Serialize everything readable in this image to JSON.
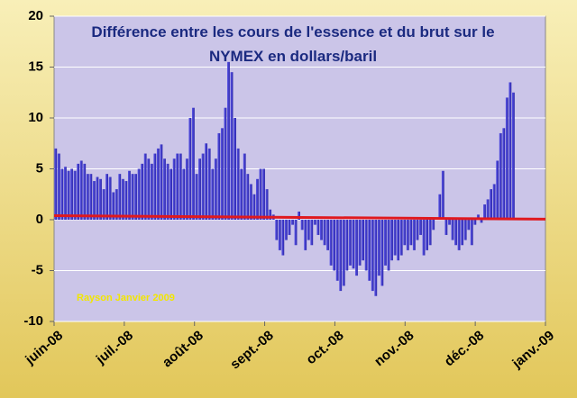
{
  "chart_data": {
    "type": "bar",
    "title": "Différence entre les cours de l'essence et du brut sur le NYMEX en dollars/baril",
    "annotation": "Rayson Janvier 2009",
    "categories": [
      null,
      null,
      null,
      null,
      null,
      null,
      null,
      null,
      null,
      null,
      null,
      null,
      null,
      null,
      null,
      null,
      null,
      null,
      null,
      null,
      null,
      null,
      null,
      null,
      null,
      null,
      null,
      null,
      null,
      null,
      null,
      null,
      null,
      null,
      null,
      null,
      null,
      null,
      null,
      null,
      null,
      null,
      null,
      null,
      null,
      null,
      null,
      null,
      null,
      null,
      null,
      null,
      null,
      null,
      null,
      null,
      null,
      null,
      null,
      null,
      null,
      null,
      null,
      null,
      null,
      null,
      null,
      null,
      null,
      null,
      null,
      null,
      null,
      null,
      null,
      null,
      null,
      null,
      null,
      null,
      null,
      null,
      null,
      null,
      null,
      null,
      null,
      null,
      null,
      null,
      null,
      null,
      null,
      null,
      null,
      null,
      null,
      null,
      null,
      null,
      null,
      null,
      null,
      null,
      null,
      null,
      null,
      null,
      null,
      null,
      null,
      null,
      null,
      null,
      null,
      null,
      null,
      null,
      null,
      null,
      null,
      null,
      null,
      null,
      null,
      null,
      null,
      null,
      null,
      null,
      null,
      null,
      null,
      null,
      null,
      null,
      null,
      null,
      null,
      null,
      null,
      null,
      null,
      null
    ],
    "values": [
      7.0,
      6.5,
      5.0,
      5.2,
      4.8,
      5.0,
      4.8,
      5.5,
      5.8,
      5.5,
      4.5,
      4.5,
      3.8,
      4.2,
      4.0,
      3.0,
      4.5,
      4.2,
      2.7,
      3.0,
      4.5,
      4.0,
      3.8,
      4.8,
      4.5,
      4.5,
      5.0,
      5.5,
      6.5,
      6.0,
      5.5,
      6.5,
      7.0,
      7.4,
      6.0,
      5.5,
      5.0,
      6.0,
      6.5,
      6.5,
      5.0,
      6.0,
      10.0,
      11.0,
      4.5,
      6.0,
      6.5,
      7.5,
      7.0,
      5.0,
      6.0,
      8.5,
      9.0,
      11.0,
      15.5,
      14.5,
      10.0,
      7.0,
      5.0,
      6.5,
      4.5,
      3.5,
      2.5,
      4.0,
      5.0,
      5.0,
      3.0,
      1.0,
      0.5,
      -2.0,
      -3.0,
      -3.5,
      -2.0,
      -1.5,
      -0.5,
      -2.5,
      0.8,
      -1.0,
      -3.0,
      -2.0,
      -2.5,
      -0.5,
      -1.5,
      -2.0,
      -2.5,
      -3.0,
      -4.5,
      -5.0,
      -6.0,
      -7.0,
      -6.5,
      -5.0,
      -4.5,
      -4.8,
      -5.5,
      -4.5,
      -4.0,
      -5.0,
      -6.0,
      -7.0,
      -7.5,
      -5.5,
      -6.5,
      -4.5,
      -5.0,
      -4.0,
      -3.5,
      -4.0,
      -3.5,
      -2.5,
      -3.0,
      -2.5,
      -3.0,
      -2.0,
      -1.5,
      -3.5,
      -3.0,
      -2.5,
      -1.0,
      0.0,
      2.5,
      4.8,
      -1.5,
      -0.5,
      -2.0,
      -2.5,
      -3.0,
      -2.5,
      -2.0,
      -1.0,
      -2.5,
      -0.5,
      0.5,
      -0.3,
      1.5,
      2.0,
      3.0,
      3.5,
      5.8,
      8.5,
      9.0,
      12.0,
      13.5,
      12.5
    ],
    "color": "#3a35c8",
    "x_labels": [
      "juin-08",
      "juil.-08",
      "août-08",
      "sept.-08",
      "oct.-08",
      "nov.-08",
      "déc.-08",
      "janv.-09"
    ],
    "trendline": {
      "color": "#e0191e",
      "values": [
        0.4,
        0.05
      ]
    },
    "ylim": [
      -10,
      20
    ],
    "yticks": [
      -10,
      -5,
      0,
      5,
      10,
      15,
      20
    ],
    "grid": true
  }
}
